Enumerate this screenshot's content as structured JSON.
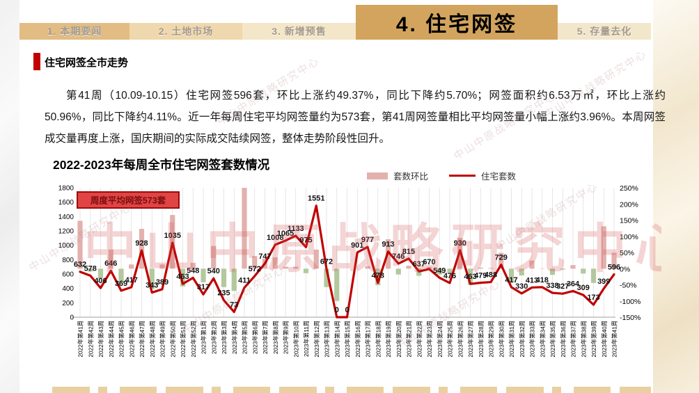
{
  "page": {
    "watermark_text": "中山中原战略研究中心"
  },
  "tabs": {
    "items": [
      {
        "label": "1. 本期要闻",
        "active": false
      },
      {
        "label": "2. 土地市场",
        "active": false
      },
      {
        "label": "3. 新增预售",
        "active": false
      },
      {
        "label": "4. 住宅网签",
        "active": true
      },
      {
        "label": "5. 存量去化",
        "active": false
      }
    ]
  },
  "section": {
    "title": "住宅网签全市走势"
  },
  "summary": {
    "text": "第41周（10.09-10.15）住宅网签596套，环比上涨约49.37%，同比下降约5.70%；网签面积约6.53万㎡，环比上涨约50.96%，同比下降约4.11%。近一年每周住宅平均网签量约为573套，第41周网签量相比平均网签量小幅上涨约3.96%。本周网签成交量再度上涨，国庆期间的实际成交陆续网签，整体走势阶段性回升。"
  },
  "chart_data": {
    "type": "combo",
    "title": "2022-2023年每周全市住宅网签套数情况",
    "annotation": "周度平均网签573套",
    "legend_position": "top-right",
    "grid": "vertical-only",
    "categories": [
      "2022年第41周",
      "2022年第42周",
      "2022年第43周",
      "2022年第44周",
      "2022年第45周",
      "2022年第46周",
      "2022年第47周",
      "2022年第48周",
      "2022年第49周",
      "2022年第50周",
      "2022年第51周",
      "2022年第52周",
      "2023年第1周",
      "2023年第2周",
      "2023年第3周",
      "2023年第4周",
      "2023年第5周",
      "2023年第6周",
      "2023年第7周",
      "2023年第8周",
      "2023年第9周",
      "2023年第10周",
      "2023年第11周",
      "2023年第12周",
      "2023年第13周",
      "2023年第14周",
      "2023年第15周",
      "2023年第16周",
      "2023年第17周",
      "2023年第18周",
      "2023年第19周",
      "2023年第20周",
      "2023年第21周",
      "2023年第22周",
      "2023年第23周",
      "2023年第24周",
      "2023年第25周",
      "2023年第26周",
      "2023年第27周",
      "2023年第28周",
      "2023年第29周",
      "2023年第30周",
      "2023年第31周",
      "2023年第32周",
      "2023年第33周",
      "2023年第34周",
      "2023年第35周",
      "2023年第36周",
      "2023年第37周",
      "2023年第38周",
      "2023年第39周",
      "2023年第40周",
      "2023年第41周"
    ],
    "series": [
      {
        "name": "套数环比",
        "type": "bar",
        "axis": "right",
        "unit": "%",
        "values": [
          148,
          -9,
          -30,
          59,
          -43,
          13,
          123,
          -63,
          13,
          166,
          -55,
          18,
          -42,
          70,
          -57,
          -69,
          463,
          39,
          31,
          35,
          6,
          6,
          -14,
          59,
          -57,
          -100,
          null,
          null,
          8,
          -51,
          91,
          -18,
          9,
          -22,
          5,
          -18,
          -13,
          95,
          -50,
          3,
          2,
          49,
          -43,
          -21,
          25,
          1,
          -19,
          -3,
          11,
          -15,
          -44,
          131,
          49
        ]
      },
      {
        "name": "住宅套数",
        "type": "line",
        "axis": "left",
        "unit": "套",
        "values": [
          632,
          578,
          406,
          646,
          369,
          417,
          928,
          343,
          389,
          1035,
          463,
          548,
          317,
          540,
          235,
          73,
          411,
          572,
          747,
          1008,
          1065,
          1133,
          975,
          1551,
          672,
          0,
          0,
          901,
          977,
          478,
          913,
          746,
          815,
          637,
          670,
          549,
          476,
          930,
          463,
          479,
          488,
          729,
          417,
          330,
          413,
          418,
          338,
          327,
          364,
          309,
          173,
          399,
          596
        ]
      }
    ],
    "left_axis": {
      "min": 0,
      "max": 1800,
      "step": 200,
      "ticks": [
        "0",
        "200",
        "400",
        "600",
        "800",
        "1000",
        "1200",
        "1400",
        "1600",
        "1800"
      ]
    },
    "right_axis": {
      "min": -150,
      "max": 250,
      "step": 50,
      "format": "percent",
      "ticks": [
        "-150%",
        "-100%",
        "-50%",
        "0%",
        "50%",
        "100%",
        "150%",
        "200%",
        "250%"
      ]
    },
    "colors": {
      "bar_positive": "#e2b1ae",
      "bar_negative": "#b3c89e",
      "line": "#c00000",
      "annotation_fill": "#e04444",
      "annotation_border": "#9c0b0b",
      "annotation_text": "#7a0d0d"
    }
  }
}
